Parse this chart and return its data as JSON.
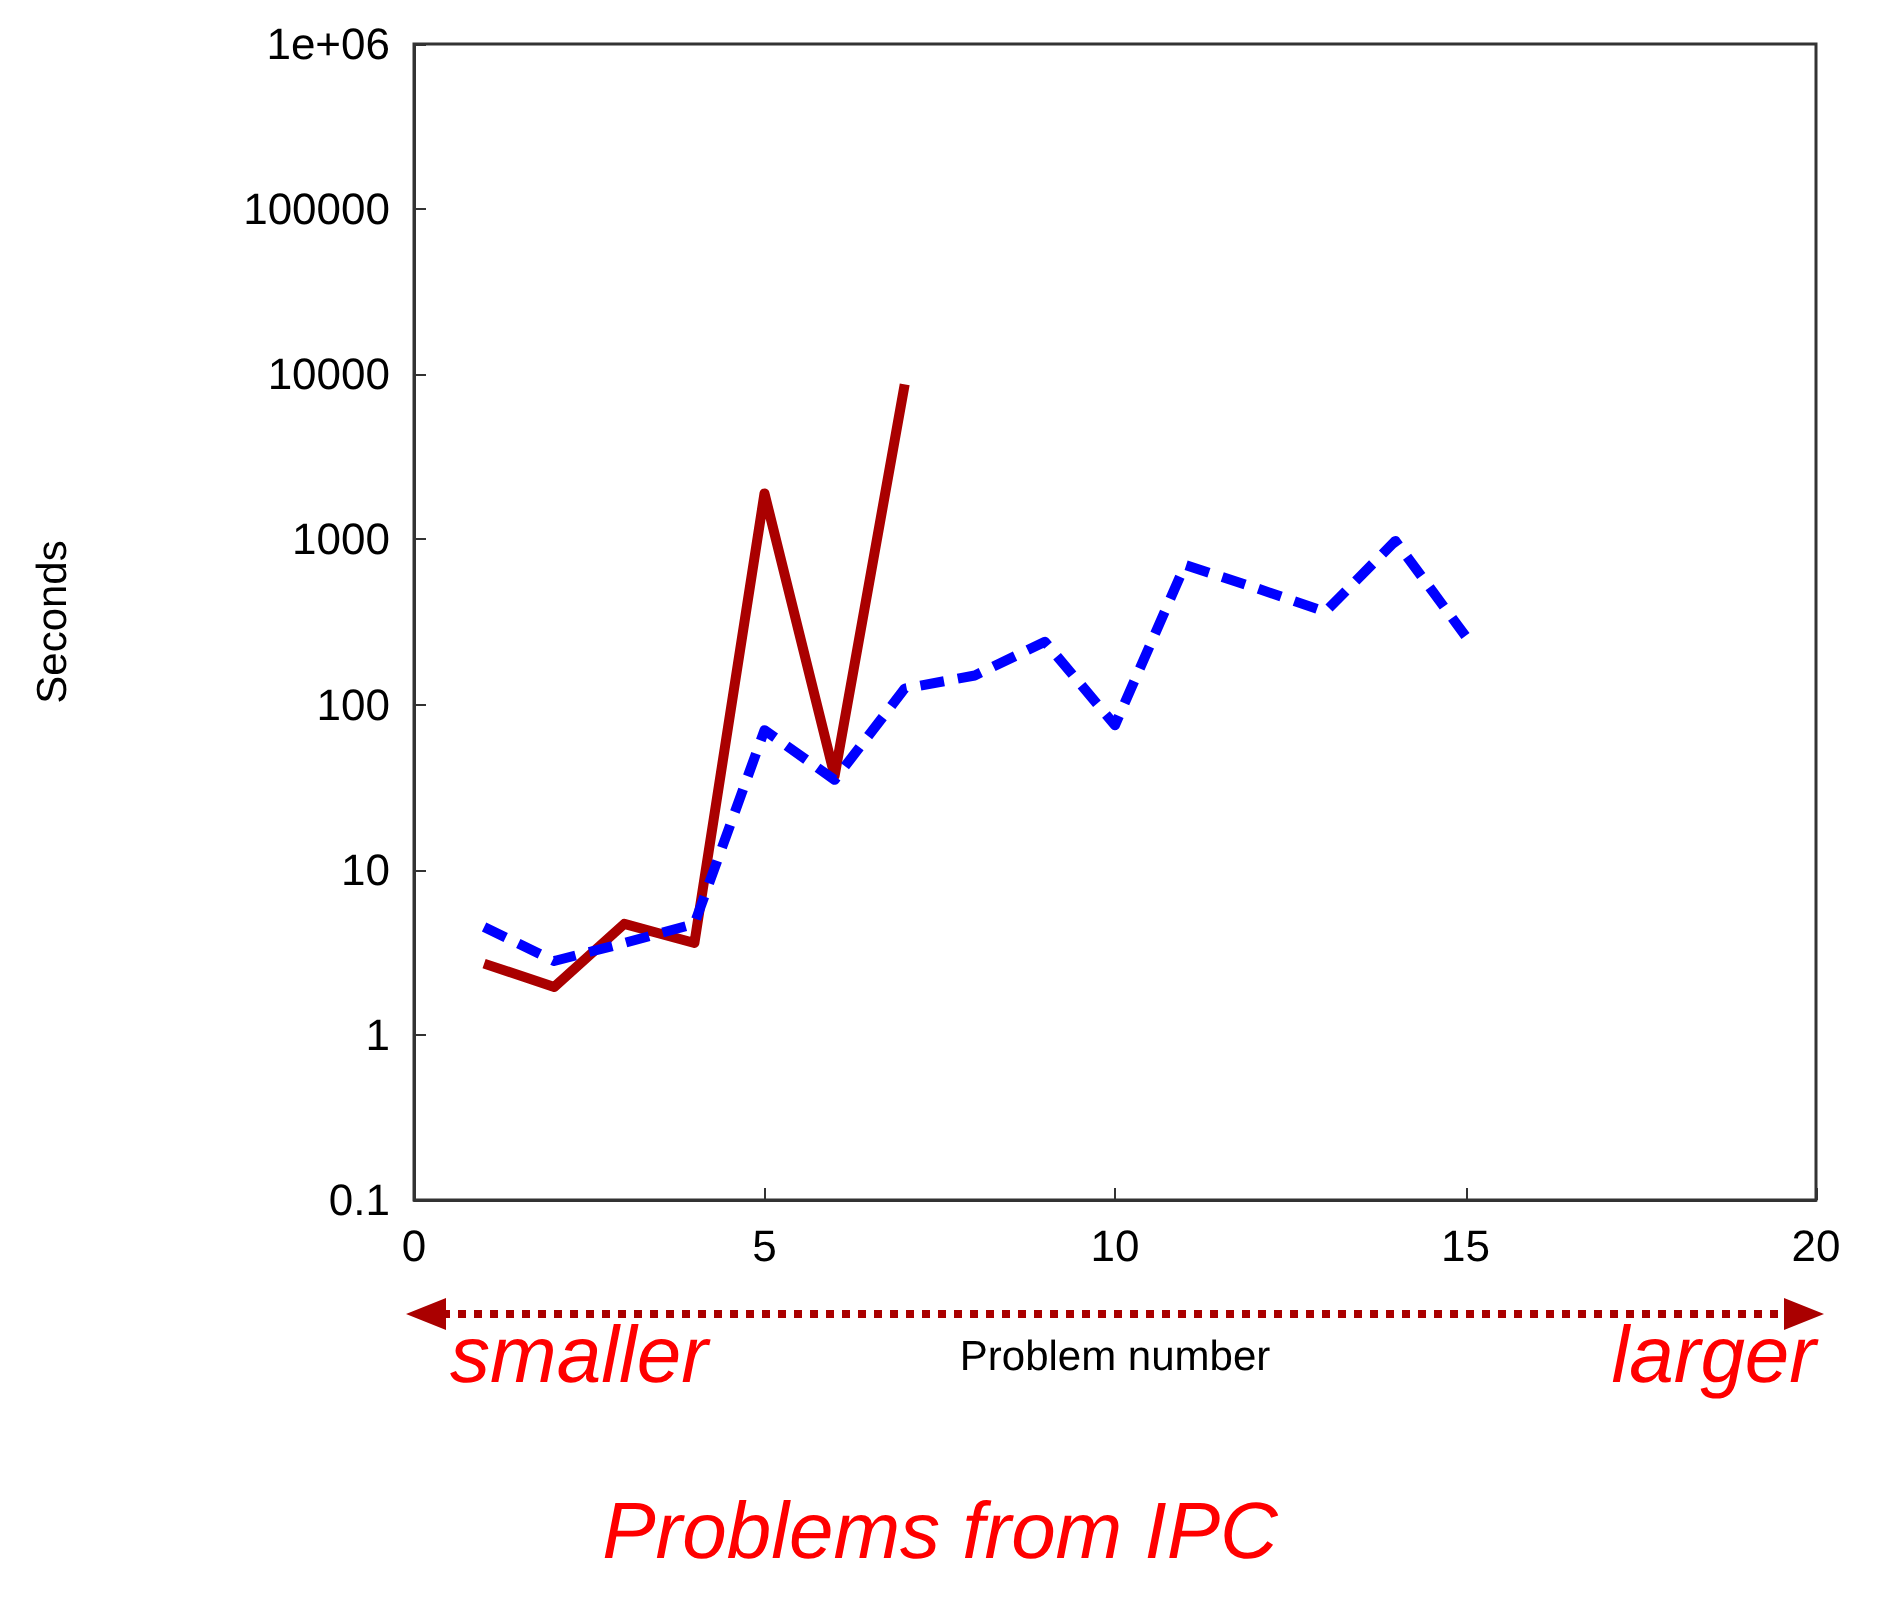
{
  "chart_data": {
    "type": "line",
    "xlabel": "Problem number",
    "ylabel": "Seconds",
    "annotations": [
      "smaller",
      "larger",
      "Problems from IPC"
    ],
    "log": "y",
    "grid": false,
    "marker": "none",
    "xlim": [
      0,
      20
    ],
    "xticks": [
      0,
      5,
      10,
      15,
      20
    ],
    "ylim": [
      0.1,
      1000000
    ],
    "yticks": [
      0.1,
      1,
      10,
      100,
      1000,
      10000,
      100000,
      {
        "value": 1000000,
        "label": "1e+06"
      }
    ],
    "series": [
      {
        "color": "#aa0000",
        "line_style": "solid",
        "x": [
          1,
          2,
          3,
          4,
          5,
          6,
          7
        ],
        "values": [
          2.7,
          1.95,
          4.7,
          3.6,
          1900,
          37,
          8700
        ]
      },
      {
        "color": "#0000ff",
        "line_style": "dashed",
        "x": [
          1,
          2,
          3,
          4,
          5,
          6,
          7,
          8,
          9,
          10,
          11,
          12,
          13,
          14,
          15
        ],
        "values": [
          4.5,
          2.8,
          3.6,
          4.7,
          70,
          35,
          125,
          150,
          240,
          75,
          700,
          510,
          365,
          980,
          260
        ]
      }
    ]
  }
}
